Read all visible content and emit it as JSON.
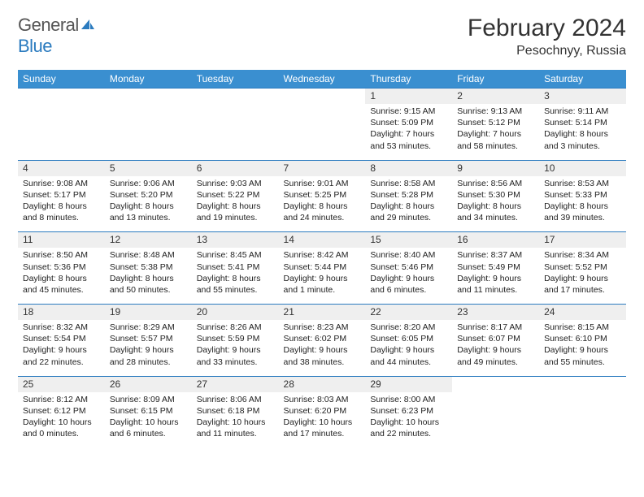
{
  "brand": {
    "part1": "General",
    "part2": "Blue"
  },
  "title": "February 2024",
  "location": "Pesochnyy, Russia",
  "header_color": "#3a8fd0",
  "border_color": "#2b7bbf",
  "weekdays": [
    "Sunday",
    "Monday",
    "Tuesday",
    "Wednesday",
    "Thursday",
    "Friday",
    "Saturday"
  ],
  "weeks": [
    {
      "days": [
        null,
        null,
        null,
        null,
        {
          "n": "1",
          "sunrise": "9:15 AM",
          "sunset": "5:09 PM",
          "daylight": "7 hours and 53 minutes."
        },
        {
          "n": "2",
          "sunrise": "9:13 AM",
          "sunset": "5:12 PM",
          "daylight": "7 hours and 58 minutes."
        },
        {
          "n": "3",
          "sunrise": "9:11 AM",
          "sunset": "5:14 PM",
          "daylight": "8 hours and 3 minutes."
        }
      ]
    },
    {
      "days": [
        {
          "n": "4",
          "sunrise": "9:08 AM",
          "sunset": "5:17 PM",
          "daylight": "8 hours and 8 minutes."
        },
        {
          "n": "5",
          "sunrise": "9:06 AM",
          "sunset": "5:20 PM",
          "daylight": "8 hours and 13 minutes."
        },
        {
          "n": "6",
          "sunrise": "9:03 AM",
          "sunset": "5:22 PM",
          "daylight": "8 hours and 19 minutes."
        },
        {
          "n": "7",
          "sunrise": "9:01 AM",
          "sunset": "5:25 PM",
          "daylight": "8 hours and 24 minutes."
        },
        {
          "n": "8",
          "sunrise": "8:58 AM",
          "sunset": "5:28 PM",
          "daylight": "8 hours and 29 minutes."
        },
        {
          "n": "9",
          "sunrise": "8:56 AM",
          "sunset": "5:30 PM",
          "daylight": "8 hours and 34 minutes."
        },
        {
          "n": "10",
          "sunrise": "8:53 AM",
          "sunset": "5:33 PM",
          "daylight": "8 hours and 39 minutes."
        }
      ]
    },
    {
      "days": [
        {
          "n": "11",
          "sunrise": "8:50 AM",
          "sunset": "5:36 PM",
          "daylight": "8 hours and 45 minutes."
        },
        {
          "n": "12",
          "sunrise": "8:48 AM",
          "sunset": "5:38 PM",
          "daylight": "8 hours and 50 minutes."
        },
        {
          "n": "13",
          "sunrise": "8:45 AM",
          "sunset": "5:41 PM",
          "daylight": "8 hours and 55 minutes."
        },
        {
          "n": "14",
          "sunrise": "8:42 AM",
          "sunset": "5:44 PM",
          "daylight": "9 hours and 1 minute."
        },
        {
          "n": "15",
          "sunrise": "8:40 AM",
          "sunset": "5:46 PM",
          "daylight": "9 hours and 6 minutes."
        },
        {
          "n": "16",
          "sunrise": "8:37 AM",
          "sunset": "5:49 PM",
          "daylight": "9 hours and 11 minutes."
        },
        {
          "n": "17",
          "sunrise": "8:34 AM",
          "sunset": "5:52 PM",
          "daylight": "9 hours and 17 minutes."
        }
      ]
    },
    {
      "days": [
        {
          "n": "18",
          "sunrise": "8:32 AM",
          "sunset": "5:54 PM",
          "daylight": "9 hours and 22 minutes."
        },
        {
          "n": "19",
          "sunrise": "8:29 AM",
          "sunset": "5:57 PM",
          "daylight": "9 hours and 28 minutes."
        },
        {
          "n": "20",
          "sunrise": "8:26 AM",
          "sunset": "5:59 PM",
          "daylight": "9 hours and 33 minutes."
        },
        {
          "n": "21",
          "sunrise": "8:23 AM",
          "sunset": "6:02 PM",
          "daylight": "9 hours and 38 minutes."
        },
        {
          "n": "22",
          "sunrise": "8:20 AM",
          "sunset": "6:05 PM",
          "daylight": "9 hours and 44 minutes."
        },
        {
          "n": "23",
          "sunrise": "8:17 AM",
          "sunset": "6:07 PM",
          "daylight": "9 hours and 49 minutes."
        },
        {
          "n": "24",
          "sunrise": "8:15 AM",
          "sunset": "6:10 PM",
          "daylight": "9 hours and 55 minutes."
        }
      ]
    },
    {
      "days": [
        {
          "n": "25",
          "sunrise": "8:12 AM",
          "sunset": "6:12 PM",
          "daylight": "10 hours and 0 minutes."
        },
        {
          "n": "26",
          "sunrise": "8:09 AM",
          "sunset": "6:15 PM",
          "daylight": "10 hours and 6 minutes."
        },
        {
          "n": "27",
          "sunrise": "8:06 AM",
          "sunset": "6:18 PM",
          "daylight": "10 hours and 11 minutes."
        },
        {
          "n": "28",
          "sunrise": "8:03 AM",
          "sunset": "6:20 PM",
          "daylight": "10 hours and 17 minutes."
        },
        {
          "n": "29",
          "sunrise": "8:00 AM",
          "sunset": "6:23 PM",
          "daylight": "10 hours and 22 minutes."
        },
        null,
        null
      ]
    }
  ],
  "labels": {
    "sunrise": "Sunrise:",
    "sunset": "Sunset:",
    "daylight": "Daylight:"
  }
}
